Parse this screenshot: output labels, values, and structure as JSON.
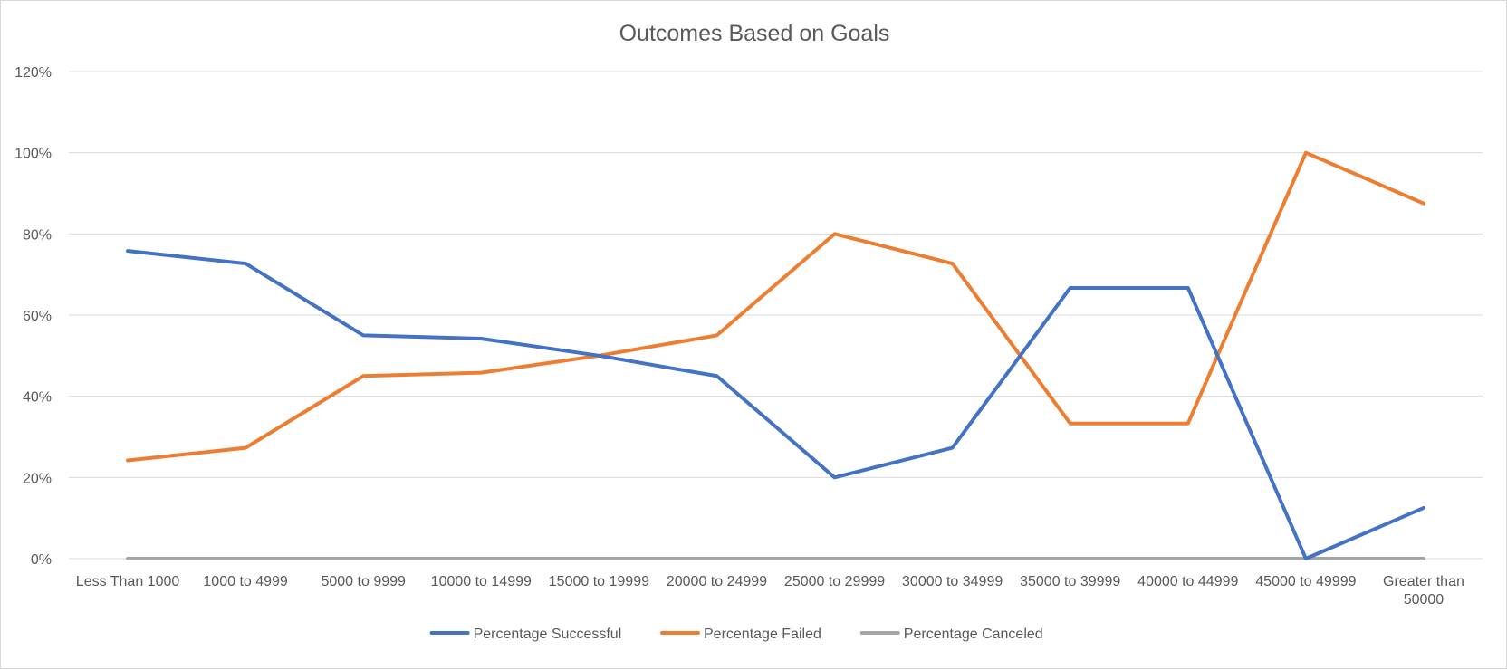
{
  "chart_data": {
    "type": "line",
    "title": "Outcomes Based on Goals",
    "xlabel": "",
    "ylabel": "",
    "categories": [
      "Less Than 1000",
      "1000 to 4999",
      "5000 to 9999",
      "10000 to 14999",
      "15000 to 19999",
      "20000 to 24999",
      "25000 to 29999",
      "30000 to 34999",
      "35000 to 39999",
      "40000 to 44999",
      "45000 to 49999",
      "Greater than 50000"
    ],
    "y_ticks": [
      "0%",
      "20%",
      "40%",
      "60%",
      "80%",
      "100%",
      "120%"
    ],
    "ylim": [
      0,
      120
    ],
    "y_unit": "%",
    "grid": "horizontal",
    "legend_position": "bottom",
    "series": [
      {
        "name": "Percentage Successful",
        "color": "#4472c4",
        "values": [
          75.8,
          72.7,
          55.0,
          54.2,
          50.0,
          45.0,
          20.0,
          27.3,
          66.7,
          66.7,
          0.0,
          12.5
        ]
      },
      {
        "name": "Percentage Failed",
        "color": "#ed7d31",
        "values": [
          24.2,
          27.3,
          45.0,
          45.8,
          50.0,
          55.0,
          80.0,
          72.7,
          33.3,
          33.3,
          100.0,
          87.5
        ]
      },
      {
        "name": "Percentage Canceled",
        "color": "#a5a5a5",
        "values": [
          0,
          0,
          0,
          0,
          0,
          0,
          0,
          0,
          0,
          0,
          0,
          0
        ]
      }
    ]
  }
}
